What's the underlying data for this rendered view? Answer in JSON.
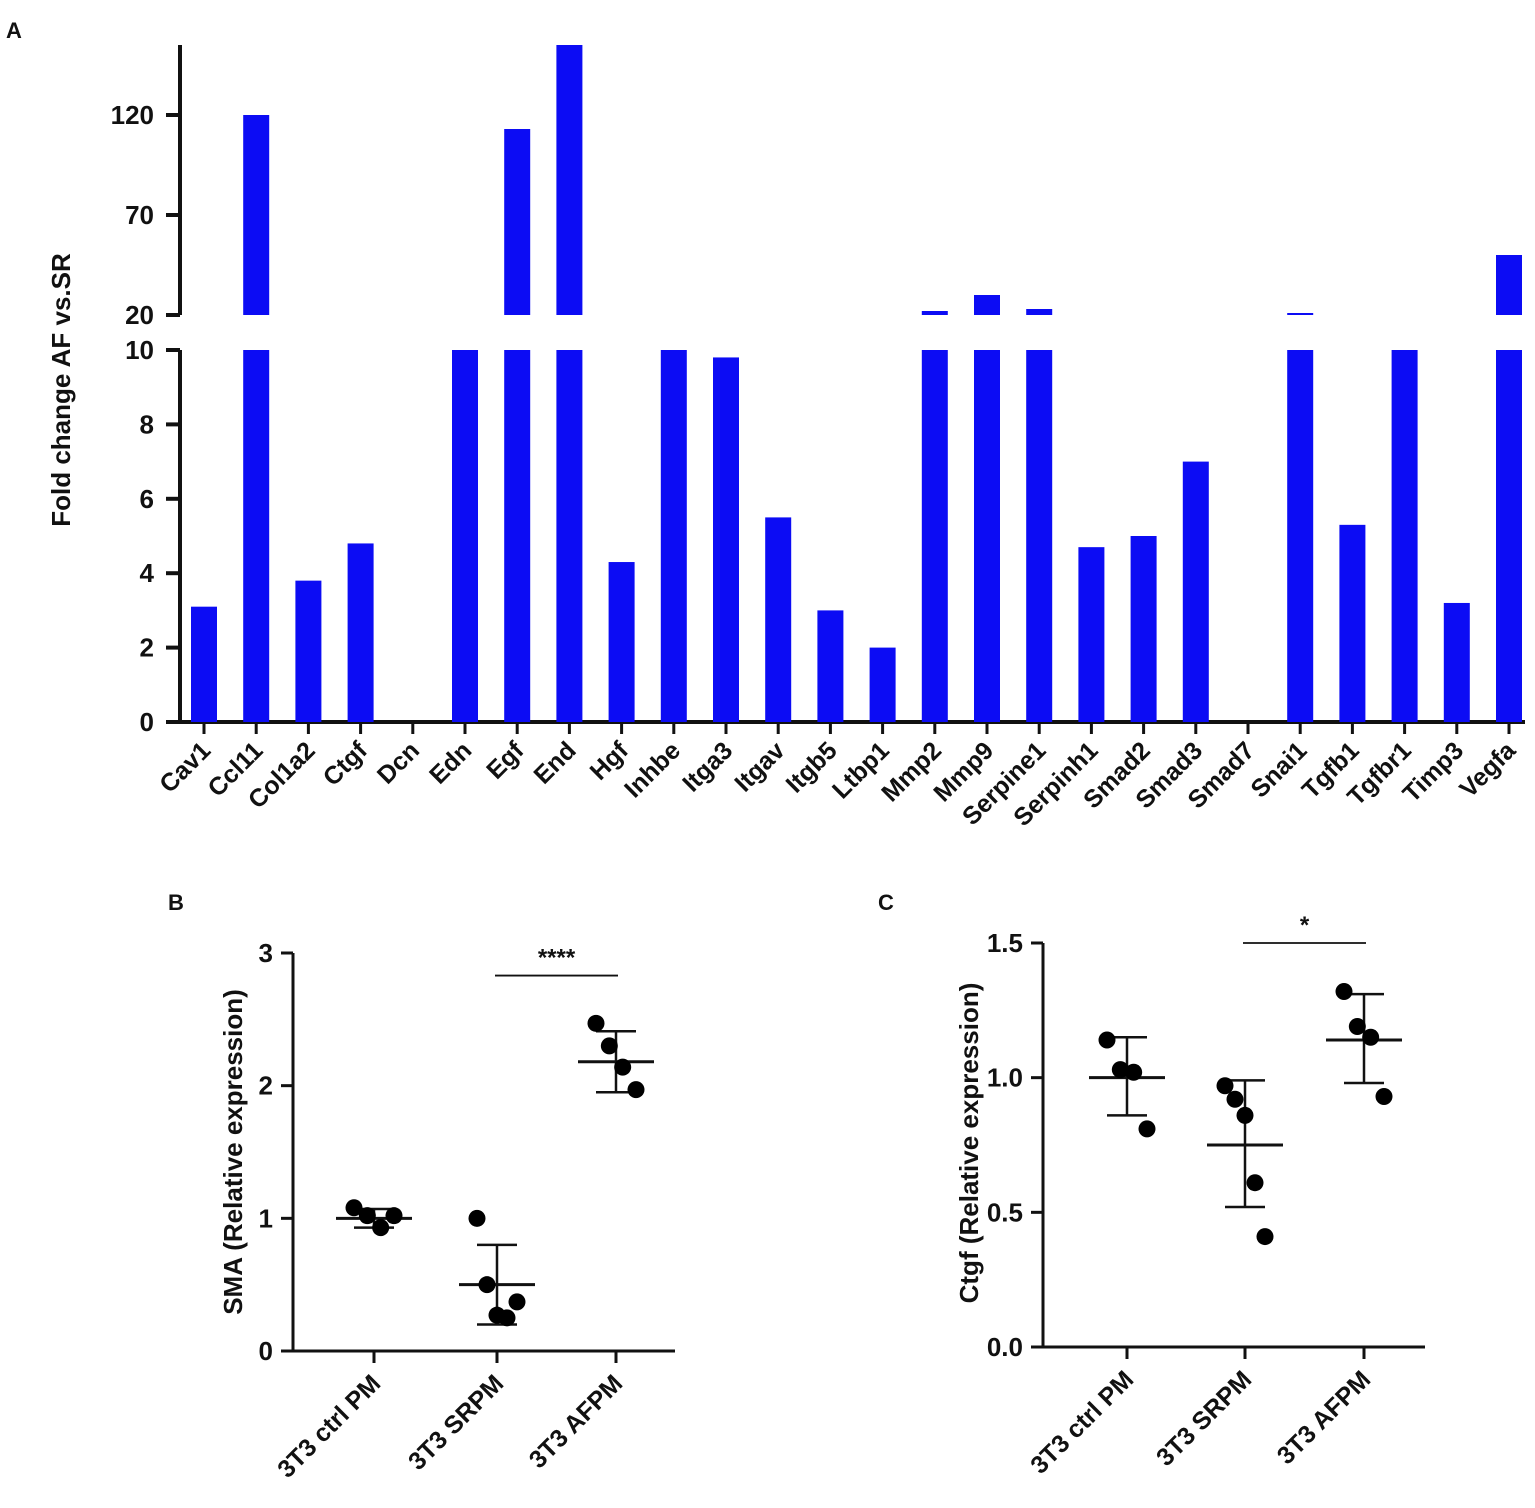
{
  "colors": {
    "bar": "#0c0cf4",
    "axis": "#111111",
    "point": "#000000",
    "background": "#ffffff"
  },
  "panels": {
    "a": "A",
    "b": "B",
    "c": "C"
  },
  "chart_data": [
    {
      "type": "bar",
      "panel": "A",
      "ylabel": "Fold change AF vs.SR",
      "xlabel": "",
      "axis_break": {
        "lower_range": [
          0,
          10
        ],
        "upper_range": [
          20,
          155
        ]
      },
      "lower_ticks": [
        "0",
        "2",
        "4",
        "6",
        "8",
        "10"
      ],
      "upper_ticks": [
        "20",
        "70",
        "120"
      ],
      "lower_tick_values": [
        0,
        2,
        4,
        6,
        8,
        10
      ],
      "upper_tick_values": [
        20,
        70,
        120
      ],
      "categories": [
        "Cav1",
        "Ccl11",
        "Col1a2",
        "Ctgf",
        "Dcn",
        "Edn",
        "Egf",
        "End",
        "Hgf",
        "Inhbe",
        "Itga3",
        "Itgav",
        "Itgb5",
        "Ltbp1",
        "Mmp2",
        "Mmp9",
        "Serpine1",
        "Serpinh1",
        "Smad2",
        "Smad3",
        "Smad7",
        "Snai1",
        "Tgfb1",
        "Tgfbr1",
        "Timp3",
        "Vegfa"
      ],
      "values": [
        3.1,
        120,
        3.8,
        4.8,
        0,
        10,
        113,
        157,
        4.3,
        10,
        9.8,
        5.5,
        3.0,
        2.0,
        22,
        30,
        23,
        4.7,
        5.0,
        7.0,
        0,
        21,
        5.3,
        10,
        3.2,
        50
      ]
    },
    {
      "type": "scatter",
      "panel": "B",
      "ylabel": "SMA (Relative expression)",
      "ylim": [
        0,
        3
      ],
      "ticks": [
        "0",
        "1",
        "2",
        "3"
      ],
      "tick_values": [
        0,
        1,
        2,
        3
      ],
      "categories": [
        "3T3 ctrl PM",
        "3T3 SRPM",
        "3T3 AFPM"
      ],
      "groups": [
        {
          "name": "3T3 ctrl PM",
          "points": [
            1.08,
            1.02,
            0.93,
            1.02
          ],
          "mean": 1.0,
          "sd_low": 0.93,
          "sd_high": 1.07
        },
        {
          "name": "3T3 SRPM",
          "points": [
            1.0,
            0.5,
            0.27,
            0.25,
            0.37
          ],
          "mean": 0.5,
          "sd_low": 0.2,
          "sd_high": 0.8
        },
        {
          "name": "3T3 AFPM",
          "points": [
            2.47,
            2.3,
            2.14,
            1.97
          ],
          "mean": 2.18,
          "sd_low": 1.95,
          "sd_high": 2.41
        }
      ],
      "significance": {
        "from": "3T3 SRPM",
        "to": "3T3 AFPM",
        "label": "****",
        "y": 2.83
      }
    },
    {
      "type": "scatter",
      "panel": "C",
      "ylabel": "Ctgf (Relative expression)",
      "ylim": [
        0,
        1.5
      ],
      "ticks": [
        "0.0",
        "0.5",
        "1.0",
        "1.5"
      ],
      "tick_values": [
        0,
        0.5,
        1.0,
        1.5
      ],
      "categories": [
        "3T3 ctrl PM",
        "3T3 SRPM",
        "3T3 AFPM"
      ],
      "groups": [
        {
          "name": "3T3 ctrl PM",
          "points": [
            1.14,
            1.03,
            1.02,
            0.81
          ],
          "mean": 1.0,
          "sd_low": 0.86,
          "sd_high": 1.15
        },
        {
          "name": "3T3 SRPM",
          "points": [
            0.97,
            0.92,
            0.86,
            0.61,
            0.41
          ],
          "mean": 0.75,
          "sd_low": 0.52,
          "sd_high": 0.99
        },
        {
          "name": "3T3 AFPM",
          "points": [
            1.32,
            1.19,
            1.15,
            0.93
          ],
          "mean": 1.14,
          "sd_low": 0.98,
          "sd_high": 1.31
        }
      ],
      "significance": {
        "from": "3T3 SRPM",
        "to": "3T3 AFPM",
        "label": "*",
        "y": 1.5
      }
    }
  ]
}
